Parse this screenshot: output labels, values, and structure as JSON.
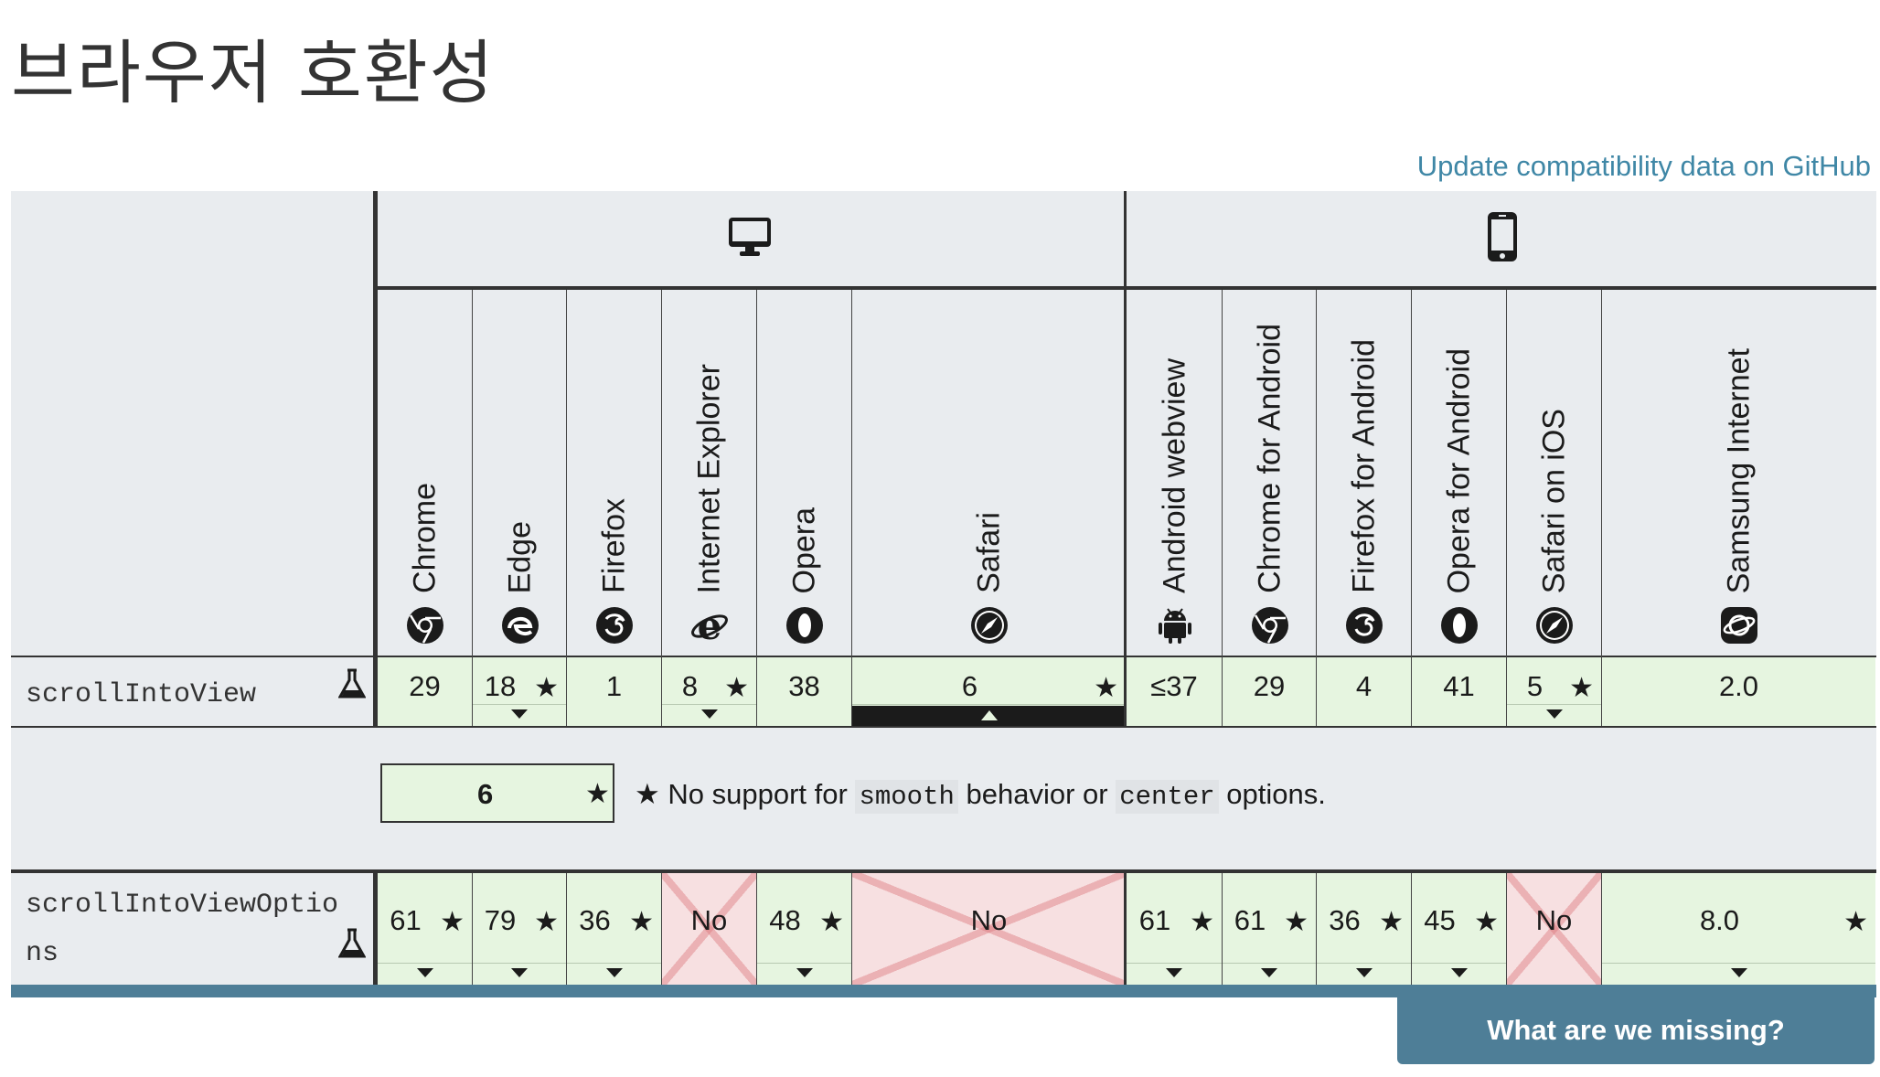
{
  "page": {
    "title": "브라우저 호환성",
    "github_link": "Update compatibility data on GitHub"
  },
  "platforms": [
    {
      "name": "desktop",
      "icon": "desktop-icon"
    },
    {
      "name": "mobile",
      "icon": "mobile-icon"
    }
  ],
  "browsers": [
    {
      "name": "Chrome",
      "icon": "chrome-icon"
    },
    {
      "name": "Edge",
      "icon": "edge-icon"
    },
    {
      "name": "Firefox",
      "icon": "firefox-icon"
    },
    {
      "name": "Internet Explorer",
      "icon": "ie-icon"
    },
    {
      "name": "Opera",
      "icon": "opera-icon"
    },
    {
      "name": "Safari",
      "icon": "safari-icon"
    },
    {
      "name": "Android webview",
      "icon": "android-icon"
    },
    {
      "name": "Chrome for Android",
      "icon": "chrome-icon"
    },
    {
      "name": "Firefox for Android",
      "icon": "firefox-icon"
    },
    {
      "name": "Opera for Android",
      "icon": "opera-icon"
    },
    {
      "name": "Safari on iOS",
      "icon": "safari-icon"
    },
    {
      "name": "Samsung Internet",
      "icon": "samsung-icon"
    }
  ],
  "features": [
    {
      "name": "scrollIntoView",
      "experimental": true,
      "cells": [
        {
          "value": "29",
          "star": false,
          "toggle": false
        },
        {
          "value": "18",
          "star": true,
          "toggle": true
        },
        {
          "value": "1",
          "star": false,
          "toggle": false
        },
        {
          "value": "8",
          "star": true,
          "toggle": true
        },
        {
          "value": "38",
          "star": false,
          "toggle": false
        },
        {
          "value": "6",
          "star": true,
          "toggle": true,
          "open": true
        },
        {
          "value": "≤37",
          "star": false,
          "toggle": false
        },
        {
          "value": "29",
          "star": false,
          "toggle": false
        },
        {
          "value": "4",
          "star": false,
          "toggle": false
        },
        {
          "value": "41",
          "star": false,
          "toggle": false
        },
        {
          "value": "5",
          "star": true,
          "toggle": true
        },
        {
          "value": "2.0",
          "star": false,
          "toggle": false
        }
      ]
    },
    {
      "name_line1": "scrollIntoViewOptio",
      "name_line2": "ns",
      "experimental": true,
      "cells": [
        {
          "value": "61",
          "star": true,
          "toggle": true
        },
        {
          "value": "79",
          "star": true,
          "toggle": true
        },
        {
          "value": "36",
          "star": true,
          "toggle": true
        },
        {
          "value": "No",
          "no": true
        },
        {
          "value": "48",
          "star": true,
          "toggle": true
        },
        {
          "value": "No",
          "no": true
        },
        {
          "value": "61",
          "star": true,
          "toggle": true
        },
        {
          "value": "61",
          "star": true,
          "toggle": true
        },
        {
          "value": "36",
          "star": true,
          "toggle": true
        },
        {
          "value": "45",
          "star": true,
          "toggle": true
        },
        {
          "value": "No",
          "no": true
        },
        {
          "value": "8.0",
          "star": true,
          "toggle": true
        }
      ]
    }
  ],
  "detail": {
    "version": "6",
    "star": "★",
    "note_prefix": "★ No support for",
    "code1": "smooth",
    "note_mid": "behavior or",
    "code2": "center",
    "note_suffix": "options."
  },
  "footer": {
    "missing_button": "What are we missing?"
  },
  "colors": {
    "supported": "#e6f5e0",
    "unsupported": "#f7e0e1",
    "header_bg": "#e9ecef",
    "link": "#3f87a6",
    "accent_bar": "#4e7e97"
  }
}
